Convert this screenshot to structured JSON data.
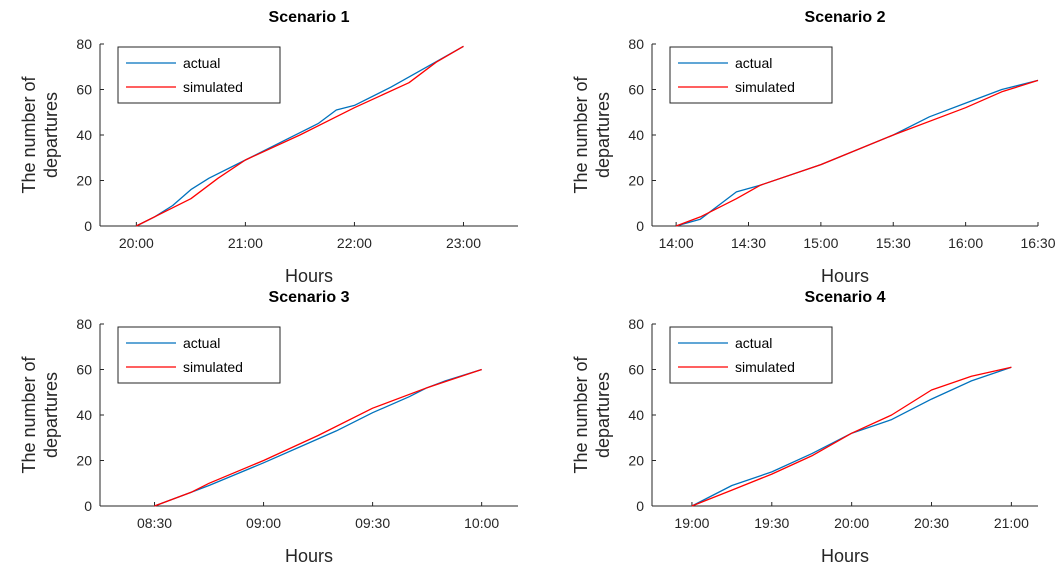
{
  "figure": {
    "background": "#ffffff",
    "actual_color": "#0072BD",
    "simulated_color": "#FF0000"
  },
  "chart_data": [
    {
      "type": "line",
      "title": "Scenario 1",
      "xlabel": "Hours",
      "ylabel": "The number of departures",
      "ylabel_lines": [
        "The number of",
        "departures"
      ],
      "xlim": [
        "19:40",
        "23:30"
      ],
      "ylim": [
        0,
        80
      ],
      "xticks": [
        "20:00",
        "21:00",
        "22:00",
        "23:00"
      ],
      "yticks": [
        0,
        20,
        40,
        60,
        80
      ],
      "grid": false,
      "legend_position": "top-left",
      "series": [
        {
          "name": "actual",
          "color": "#0072BD",
          "x": [
            "20:00",
            "20:10",
            "20:20",
            "20:30",
            "20:40",
            "21:00",
            "21:20",
            "21:40",
            "21:50",
            "22:00",
            "22:20",
            "22:40",
            "23:00"
          ],
          "y": [
            0,
            4,
            9,
            16,
            21,
            29,
            37,
            45,
            51,
            53,
            61,
            70,
            79
          ]
        },
        {
          "name": "simulated",
          "color": "#FF0000",
          "x": [
            "20:00",
            "20:15",
            "20:30",
            "20:45",
            "21:00",
            "21:30",
            "22:00",
            "22:30",
            "22:45",
            "23:00"
          ],
          "y": [
            0,
            6,
            12,
            21,
            29,
            40,
            52,
            63,
            72,
            79
          ]
        }
      ]
    },
    {
      "type": "line",
      "title": "Scenario 2",
      "xlabel": "Hours",
      "ylabel": "The number of departures",
      "ylabel_lines": [
        "The number of",
        "departures"
      ],
      "xlim": [
        "13:50",
        "16:30"
      ],
      "ylim": [
        0,
        80
      ],
      "xticks": [
        "14:00",
        "14:30",
        "15:00",
        "15:30",
        "16:00",
        "16:30"
      ],
      "yticks": [
        0,
        20,
        40,
        60,
        80
      ],
      "grid": false,
      "legend_position": "top-left",
      "series": [
        {
          "name": "actual",
          "color": "#0072BD",
          "x": [
            "14:00",
            "14:10",
            "14:20",
            "14:25",
            "14:35",
            "15:00",
            "15:30",
            "15:45",
            "16:00",
            "16:15",
            "16:30"
          ],
          "y": [
            0,
            3,
            11,
            15,
            18,
            27,
            40,
            48,
            54,
            60,
            64
          ]
        },
        {
          "name": "simulated",
          "color": "#FF0000",
          "x": [
            "14:00",
            "14:10",
            "14:25",
            "14:35",
            "15:00",
            "15:30",
            "16:00",
            "16:15",
            "16:30"
          ],
          "y": [
            0,
            4,
            12,
            18,
            27,
            40,
            52,
            59,
            64
          ]
        }
      ]
    },
    {
      "type": "line",
      "title": "Scenario 3",
      "xlabel": "Hours",
      "ylabel": "The number of departures",
      "ylabel_lines": [
        "The number of",
        "departures"
      ],
      "xlim": [
        "08:15",
        "10:10"
      ],
      "ylim": [
        0,
        80
      ],
      "xticks": [
        "08:30",
        "09:00",
        "09:30",
        "10:00"
      ],
      "yticks": [
        0,
        20,
        40,
        60,
        80
      ],
      "grid": false,
      "legend_position": "top-left",
      "series": [
        {
          "name": "actual",
          "color": "#0072BD",
          "x": [
            "08:30",
            "08:40",
            "08:45",
            "09:00",
            "09:10",
            "09:20",
            "09:30",
            "09:40",
            "09:45",
            "09:50",
            "10:00"
          ],
          "y": [
            0,
            6,
            9,
            19,
            26,
            33,
            41,
            48,
            52,
            55,
            60
          ]
        },
        {
          "name": "simulated",
          "color": "#FF0000",
          "x": [
            "08:30",
            "08:40",
            "08:45",
            "09:00",
            "09:15",
            "09:30",
            "09:45",
            "10:00"
          ],
          "y": [
            0,
            6,
            10,
            20,
            31,
            43,
            52,
            60
          ]
        }
      ]
    },
    {
      "type": "line",
      "title": "Scenario 4",
      "xlabel": "Hours",
      "ylabel": "The number of departures",
      "ylabel_lines": [
        "The number of",
        "departures"
      ],
      "xlim": [
        "18:45",
        "21:10"
      ],
      "ylim": [
        0,
        80
      ],
      "xticks": [
        "19:00",
        "19:30",
        "20:00",
        "20:30",
        "21:00"
      ],
      "yticks": [
        0,
        20,
        40,
        60,
        80
      ],
      "grid": false,
      "legend_position": "top-left",
      "series": [
        {
          "name": "actual",
          "color": "#0072BD",
          "x": [
            "19:00",
            "19:15",
            "19:30",
            "19:45",
            "20:00",
            "20:15",
            "20:30",
            "20:45",
            "21:00"
          ],
          "y": [
            0,
            9,
            15,
            23,
            32,
            38,
            47,
            55,
            61
          ]
        },
        {
          "name": "simulated",
          "color": "#FF0000",
          "x": [
            "19:00",
            "19:15",
            "19:30",
            "19:45",
            "20:00",
            "20:15",
            "20:30",
            "20:45",
            "21:00"
          ],
          "y": [
            0,
            7,
            14,
            22,
            32,
            40,
            51,
            57,
            61
          ]
        }
      ]
    }
  ]
}
